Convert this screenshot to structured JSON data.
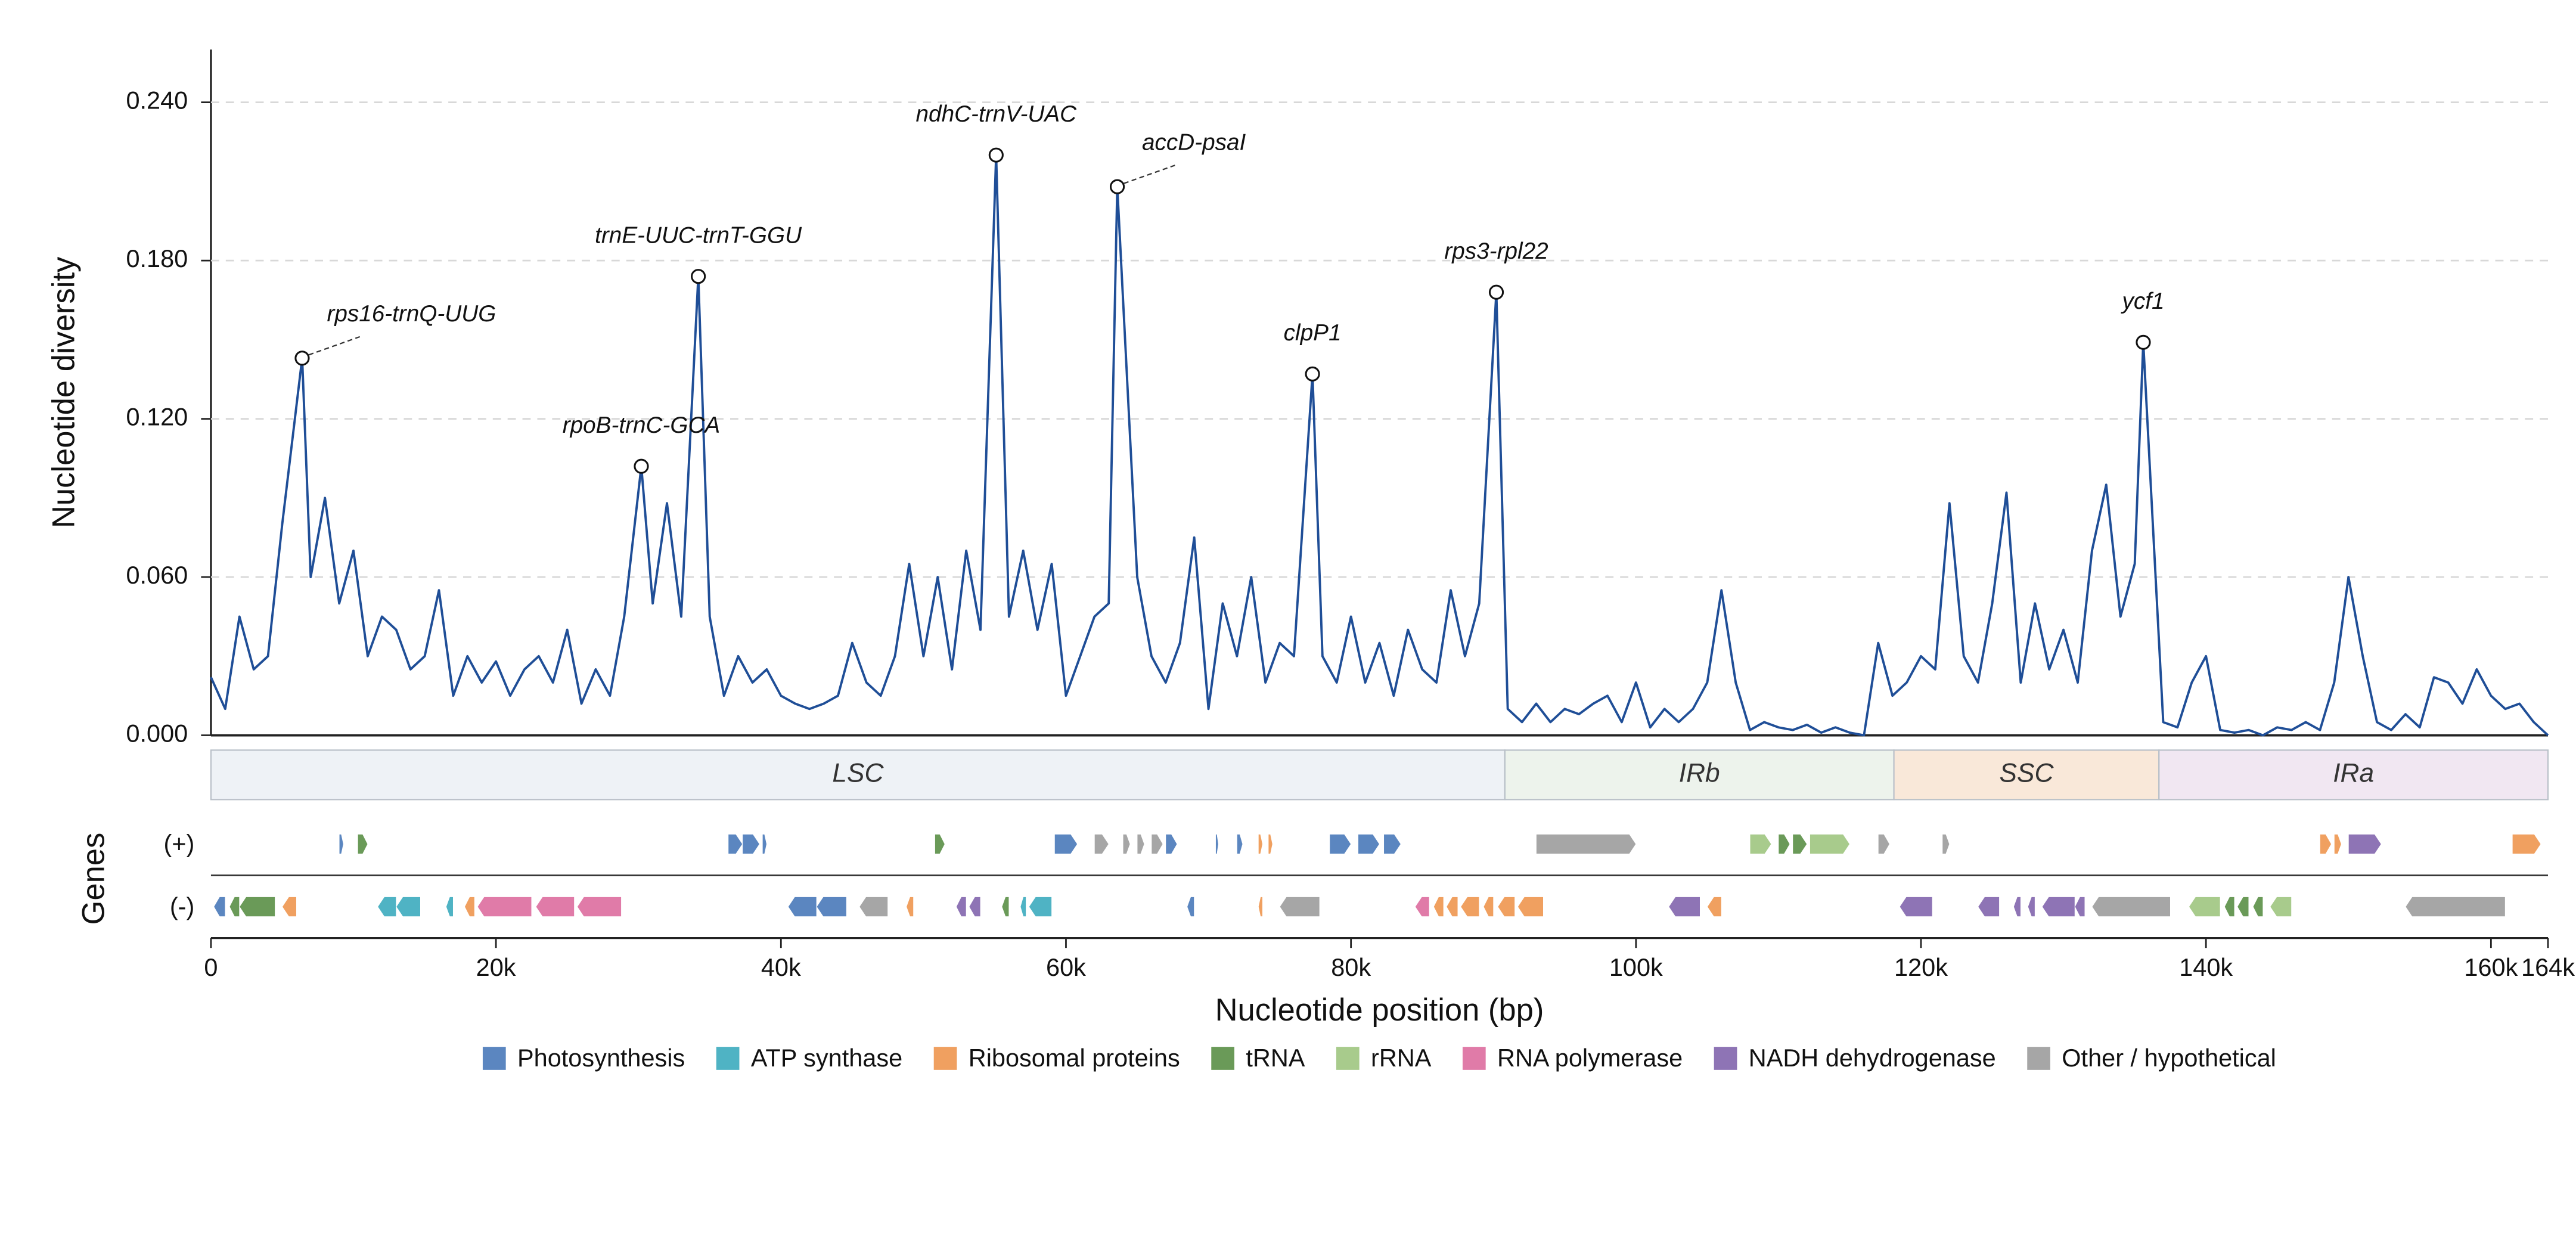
{
  "chart_data": {
    "type": "line",
    "ylabel": "Nucleotide diversity",
    "xlabel": "Nucleotide position (bp)",
    "genes_label": "Genes",
    "strand_labels": [
      "(+)",
      "(-)"
    ],
    "color": "#1f4e97",
    "grid": true,
    "ylim": [
      0,
      0.26
    ],
    "yticks": [
      {
        "value": 0,
        "label": "0.000"
      },
      {
        "value": 0.06,
        "label": "0.060"
      },
      {
        "value": 0.12,
        "label": "0.120"
      },
      {
        "value": 0.18,
        "label": "0.180"
      },
      {
        "value": 0.24,
        "label": "0.240"
      }
    ],
    "xlim": [
      0,
      164000
    ],
    "xticks": [
      0,
      {
        "value": 20000,
        "label": "20k"
      },
      {
        "value": 40000,
        "label": "40k"
      },
      {
        "value": 60000,
        "label": "60k"
      },
      {
        "value": 80000,
        "label": "80k"
      },
      {
        "value": 100000,
        "label": "100k"
      },
      {
        "value": 120000,
        "label": "120k"
      },
      {
        "value": 140000,
        "label": "140k"
      },
      {
        "value": 160000,
        "label": "160k"
      },
      {
        "value": 164000,
        "label": "164k"
      }
    ],
    "x": [
      0,
      1000,
      2000,
      3000,
      4000,
      5000,
      6400,
      7000,
      8000,
      9000,
      10000,
      11000,
      12000,
      13000,
      14000,
      15000,
      16000,
      17000,
      18000,
      19000,
      20000,
      21000,
      22000,
      23000,
      24000,
      25000,
      26000,
      27000,
      28000,
      29000,
      30200,
      31000,
      32000,
      33000,
      34200,
      35000,
      36000,
      37000,
      38000,
      39000,
      40000,
      41000,
      42000,
      43000,
      44000,
      45000,
      46000,
      47000,
      48000,
      49000,
      50000,
      51000,
      52000,
      53000,
      54000,
      55100,
      56000,
      57000,
      58000,
      59000,
      60000,
      61000,
      62000,
      63000,
      63600,
      65000,
      66000,
      67000,
      68000,
      69000,
      70000,
      71000,
      72000,
      73000,
      74000,
      75000,
      76000,
      77300,
      78000,
      79000,
      80000,
      81000,
      82000,
      83000,
      84000,
      85000,
      86000,
      87000,
      88000,
      89000,
      90200,
      91000,
      92000,
      93000,
      94000,
      95000,
      96000,
      97000,
      98000,
      99000,
      100000,
      101000,
      102000,
      103000,
      104000,
      105000,
      106000,
      107000,
      108000,
      109000,
      110000,
      111000,
      112000,
      113000,
      114000,
      115000,
      116000,
      117000,
      118000,
      119000,
      120000,
      121000,
      122000,
      123000,
      124000,
      125000,
      126000,
      127000,
      128000,
      129000,
      130000,
      131000,
      132000,
      133000,
      134000,
      135000,
      135600,
      137000,
      138000,
      139000,
      140000,
      141000,
      142000,
      143000,
      144000,
      145000,
      146000,
      147000,
      148000,
      149000,
      150000,
      151000,
      152000,
      153000,
      154000,
      155000,
      156000,
      157000,
      158000,
      159000,
      160000,
      161000,
      162000,
      163000,
      164000
    ],
    "values": [
      0.022,
      0.01,
      0.045,
      0.025,
      0.03,
      0.08,
      0.143,
      0.06,
      0.09,
      0.05,
      0.07,
      0.03,
      0.045,
      0.04,
      0.025,
      0.03,
      0.055,
      0.015,
      0.03,
      0.02,
      0.028,
      0.015,
      0.025,
      0.03,
      0.02,
      0.04,
      0.012,
      0.025,
      0.015,
      0.045,
      0.102,
      0.05,
      0.088,
      0.045,
      0.174,
      0.045,
      0.015,
      0.03,
      0.02,
      0.025,
      0.015,
      0.012,
      0.01,
      0.012,
      0.015,
      0.035,
      0.02,
      0.015,
      0.03,
      0.065,
      0.03,
      0.06,
      0.025,
      0.07,
      0.04,
      0.22,
      0.045,
      0.07,
      0.04,
      0.065,
      0.015,
      0.03,
      0.045,
      0.05,
      0.208,
      0.06,
      0.03,
      0.02,
      0.035,
      0.075,
      0.01,
      0.05,
      0.03,
      0.06,
      0.02,
      0.035,
      0.03,
      0.137,
      0.03,
      0.02,
      0.045,
      0.02,
      0.035,
      0.015,
      0.04,
      0.025,
      0.02,
      0.055,
      0.03,
      0.05,
      0.168,
      0.01,
      0.005,
      0.012,
      0.005,
      0.01,
      0.008,
      0.012,
      0.015,
      0.005,
      0.02,
      0.003,
      0.01,
      0.005,
      0.01,
      0.02,
      0.055,
      0.02,
      0.002,
      0.005,
      0.003,
      0.002,
      0.004,
      0.001,
      0.003,
      0.001,
      0.0,
      0.035,
      0.015,
      0.02,
      0.03,
      0.025,
      0.088,
      0.03,
      0.02,
      0.05,
      0.092,
      0.02,
      0.05,
      0.025,
      0.04,
      0.02,
      0.07,
      0.095,
      0.045,
      0.065,
      0.149,
      0.005,
      0.003,
      0.02,
      0.03,
      0.002,
      0.001,
      0.002,
      0.0,
      0.003,
      0.002,
      0.005,
      0.002,
      0.02,
      0.06,
      0.03,
      0.005,
      0.002,
      0.008,
      0.003,
      0.022,
      0.02,
      0.012,
      0.025,
      0.015,
      0.01,
      0.012,
      0.005,
      0.0
    ],
    "annotations": [
      {
        "label": "rps16-trnQ-UUG",
        "x": 6400,
        "y": 0.143
      },
      {
        "label": "rpoB-trnC-GCA",
        "x": 30200,
        "y": 0.102
      },
      {
        "label": "trnE-UUC-trnT-GGU",
        "x": 34200,
        "y": 0.174
      },
      {
        "label": "ndhC-trnV-UAC",
        "x": 55100,
        "y": 0.22
      },
      {
        "label": "accD-psaI",
        "x": 63600,
        "y": 0.208
      },
      {
        "label": "clpP1",
        "x": 77300,
        "y": 0.137
      },
      {
        "label": "rps3-rpl22",
        "x": 90200,
        "y": 0.168
      },
      {
        "label": "ycf1",
        "x": 135600,
        "y": 0.149
      }
    ],
    "regions": [
      {
        "name": "LSC",
        "start": 0,
        "end": 90800,
        "color": "#eef2f6"
      },
      {
        "name": "IRb",
        "start": 90800,
        "end": 118100,
        "color": "#edf3ec"
      },
      {
        "name": "SSC",
        "start": 118100,
        "end": 136700,
        "color": "#f9e8d9"
      },
      {
        "name": "IRa",
        "start": 136700,
        "end": 164000,
        "color": "#f1e7f2"
      }
    ],
    "gene_categories": [
      {
        "name": "Photosynthesis",
        "color": "#5b86c0"
      },
      {
        "name": "ATP synthase",
        "color": "#4fb3c4"
      },
      {
        "name": "Ribosomal proteins",
        "color": "#f0a060"
      },
      {
        "name": "tRNA",
        "color": "#6a9a58"
      },
      {
        "name": "rRNA",
        "color": "#a8cb8c"
      },
      {
        "name": "RNA polymerase",
        "color": "#e07ba8"
      },
      {
        "name": "NADH dehydrogenase",
        "color": "#8e74b5"
      },
      {
        "name": "Other / hypothetical",
        "color": "#a6a6a6"
      }
    ],
    "genes": [
      {
        "strand": 0,
        "start": 9000,
        "end": 9300,
        "category": 0
      },
      {
        "strand": 0,
        "start": 10300,
        "end": 11000,
        "category": 3
      },
      {
        "strand": 0,
        "start": 36300,
        "end": 37300,
        "category": 0
      },
      {
        "strand": 0,
        "start": 37300,
        "end": 38500,
        "category": 0
      },
      {
        "strand": 0,
        "start": 38700,
        "end": 39000,
        "category": 0
      },
      {
        "strand": 0,
        "start": 50800,
        "end": 51500,
        "category": 3
      },
      {
        "strand": 0,
        "start": 59200,
        "end": 60800,
        "category": 0
      },
      {
        "strand": 0,
        "start": 62000,
        "end": 63000,
        "category": 7
      },
      {
        "strand": 0,
        "start": 64000,
        "end": 64500,
        "category": 7
      },
      {
        "strand": 0,
        "start": 65000,
        "end": 65500,
        "category": 7
      },
      {
        "strand": 0,
        "start": 66000,
        "end": 66800,
        "category": 7
      },
      {
        "strand": 0,
        "start": 67000,
        "end": 67800,
        "category": 0
      },
      {
        "strand": 0,
        "start": 70500,
        "end": 70700,
        "category": 0
      },
      {
        "strand": 0,
        "start": 72000,
        "end": 72400,
        "category": 0
      },
      {
        "strand": 0,
        "start": 73500,
        "end": 73800,
        "category": 2
      },
      {
        "strand": 0,
        "start": 74200,
        "end": 74500,
        "category": 2
      },
      {
        "strand": 0,
        "start": 78500,
        "end": 80000,
        "category": 0
      },
      {
        "strand": 0,
        "start": 80500,
        "end": 82000,
        "category": 0
      },
      {
        "strand": 0,
        "start": 82300,
        "end": 83500,
        "category": 0
      },
      {
        "strand": 0,
        "start": 93000,
        "end": 100000,
        "category": 7
      },
      {
        "strand": 0,
        "start": 108000,
        "end": 109500,
        "category": 4
      },
      {
        "strand": 0,
        "start": 110000,
        "end": 110800,
        "category": 3
      },
      {
        "strand": 0,
        "start": 111000,
        "end": 112000,
        "category": 3
      },
      {
        "strand": 0,
        "start": 112200,
        "end": 115000,
        "category": 4
      },
      {
        "strand": 0,
        "start": 117000,
        "end": 117800,
        "category": 7
      },
      {
        "strand": 0,
        "start": 121500,
        "end": 122000,
        "category": 7
      },
      {
        "strand": 0,
        "start": 148000,
        "end": 148800,
        "category": 2
      },
      {
        "strand": 0,
        "start": 149000,
        "end": 149500,
        "category": 2
      },
      {
        "strand": 0,
        "start": 150000,
        "end": 152300,
        "category": 6
      },
      {
        "strand": 0,
        "start": 161500,
        "end": 163500,
        "category": 2
      },
      {
        "strand": 1,
        "start": 200,
        "end": 1000,
        "category": 0
      },
      {
        "strand": 1,
        "start": 1300,
        "end": 2000,
        "category": 3
      },
      {
        "strand": 1,
        "start": 2000,
        "end": 4500,
        "category": 3
      },
      {
        "strand": 1,
        "start": 5000,
        "end": 6000,
        "category": 2
      },
      {
        "strand": 1,
        "start": 11700,
        "end": 13000,
        "category": 1
      },
      {
        "strand": 1,
        "start": 13000,
        "end": 14700,
        "category": 1
      },
      {
        "strand": 1,
        "start": 16500,
        "end": 17000,
        "category": 1
      },
      {
        "strand": 1,
        "start": 17800,
        "end": 18500,
        "category": 2
      },
      {
        "strand": 1,
        "start": 18700,
        "end": 22500,
        "category": 5
      },
      {
        "strand": 1,
        "start": 22800,
        "end": 25500,
        "category": 5
      },
      {
        "strand": 1,
        "start": 25700,
        "end": 28800,
        "category": 5
      },
      {
        "strand": 1,
        "start": 40500,
        "end": 42500,
        "category": 0
      },
      {
        "strand": 1,
        "start": 42500,
        "end": 44600,
        "category": 0
      },
      {
        "strand": 1,
        "start": 45500,
        "end": 47500,
        "category": 7
      },
      {
        "strand": 1,
        "start": 48800,
        "end": 49300,
        "category": 2
      },
      {
        "strand": 1,
        "start": 52300,
        "end": 53000,
        "category": 6
      },
      {
        "strand": 1,
        "start": 53200,
        "end": 54000,
        "category": 6
      },
      {
        "strand": 1,
        "start": 55500,
        "end": 56000,
        "category": 3
      },
      {
        "strand": 1,
        "start": 56800,
        "end": 57200,
        "category": 1
      },
      {
        "strand": 1,
        "start": 57400,
        "end": 59000,
        "category": 1
      },
      {
        "strand": 1,
        "start": 68500,
        "end": 69000,
        "category": 0
      },
      {
        "strand": 1,
        "start": 73500,
        "end": 73800,
        "category": 2
      },
      {
        "strand": 1,
        "start": 75000,
        "end": 77800,
        "category": 7
      },
      {
        "strand": 1,
        "start": 84500,
        "end": 85500,
        "category": 5
      },
      {
        "strand": 1,
        "start": 85800,
        "end": 86500,
        "category": 2
      },
      {
        "strand": 1,
        "start": 86700,
        "end": 87500,
        "category": 2
      },
      {
        "strand": 1,
        "start": 87700,
        "end": 89000,
        "category": 2
      },
      {
        "strand": 1,
        "start": 89300,
        "end": 90000,
        "category": 2
      },
      {
        "strand": 1,
        "start": 90300,
        "end": 91500,
        "category": 2
      },
      {
        "strand": 1,
        "start": 91700,
        "end": 93500,
        "category": 2
      },
      {
        "strand": 1,
        "start": 102300,
        "end": 104500,
        "category": 6
      },
      {
        "strand": 1,
        "start": 105000,
        "end": 106000,
        "category": 2
      },
      {
        "strand": 1,
        "start": 118500,
        "end": 120800,
        "category": 6
      },
      {
        "strand": 1,
        "start": 124000,
        "end": 125500,
        "category": 6
      },
      {
        "strand": 1,
        "start": 126500,
        "end": 127000,
        "category": 6
      },
      {
        "strand": 1,
        "start": 127500,
        "end": 128000,
        "category": 6
      },
      {
        "strand": 1,
        "start": 128500,
        "end": 130800,
        "category": 6
      },
      {
        "strand": 1,
        "start": 130800,
        "end": 131500,
        "category": 6
      },
      {
        "strand": 1,
        "start": 132000,
        "end": 137500,
        "category": 7
      },
      {
        "strand": 1,
        "start": 138800,
        "end": 141000,
        "category": 4
      },
      {
        "strand": 1,
        "start": 141300,
        "end": 142000,
        "category": 3
      },
      {
        "strand": 1,
        "start": 142200,
        "end": 143000,
        "category": 3
      },
      {
        "strand": 1,
        "start": 143300,
        "end": 144000,
        "category": 3
      },
      {
        "strand": 1,
        "start": 144500,
        "end": 146000,
        "category": 4
      },
      {
        "strand": 1,
        "start": 154000,
        "end": 161000,
        "category": 7
      }
    ]
  }
}
